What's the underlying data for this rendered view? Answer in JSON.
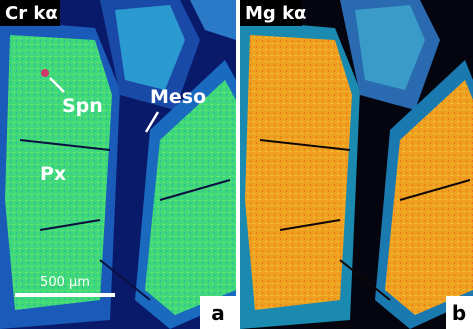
{
  "panels": [
    {
      "title": "Cr kα",
      "letter": "a",
      "annotations": [
        "Spn",
        "Meso",
        "Px"
      ],
      "scale_bar": "500 μm"
    },
    {
      "title": "Mg kα",
      "letter": "b"
    }
  ]
}
